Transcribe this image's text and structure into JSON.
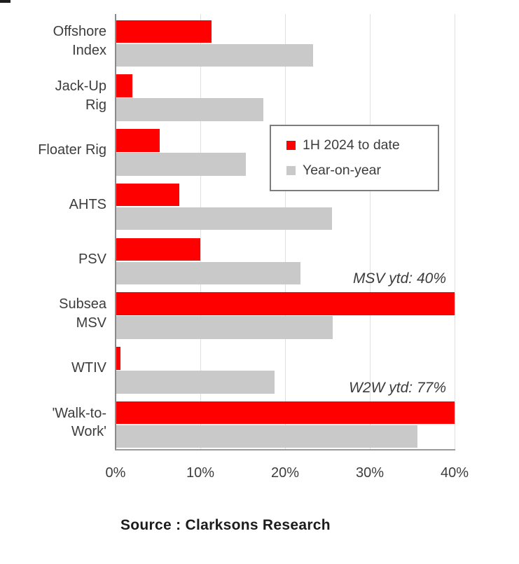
{
  "chart_data": {
    "type": "bar",
    "orientation": "horizontal",
    "title": "",
    "xlabel": "",
    "ylabel": "",
    "xlim": [
      0,
      40
    ],
    "clip_values_at": 40,
    "grid": true,
    "x_ticks": [
      0,
      10,
      20,
      30,
      40
    ],
    "x_tick_labels": [
      "0%",
      "10%",
      "20%",
      "30%",
      "40%"
    ],
    "categories": [
      "Offshore\nIndex",
      "Jack-Up\nRig",
      "Floater Rig",
      "AHTS",
      "PSV",
      "Subsea\nMSV",
      "WTIV",
      "'Walk-to-\nWork'"
    ],
    "series": [
      {
        "name": "1H 2024 to date",
        "color": "#fe0000",
        "values": [
          11.3,
          2.0,
          5.2,
          7.5,
          10.0,
          40.0,
          0.6,
          77.0
        ]
      },
      {
        "name": "Year-on-year",
        "color": "#c9c9c9",
        "values": [
          23.3,
          17.4,
          15.4,
          25.5,
          21.8,
          25.6,
          18.8,
          35.6
        ]
      }
    ],
    "legend_position": "upper-right-inside",
    "annotations": [
      {
        "text": "MSV ytd: 40%",
        "category_index": 5
      },
      {
        "text": "W2W ytd: 77%",
        "category_index": 7
      }
    ],
    "source_note": "Source : Clarksons Research"
  },
  "legend": {
    "items": [
      {
        "label": "1H 2024 to date",
        "color": "#fe0000"
      },
      {
        "label": "Year-on-year",
        "color": "#c9c9c9"
      }
    ]
  },
  "footer": {
    "source_label": "Source : Clarksons Research"
  },
  "colors": {
    "bar_red": "#fe0000",
    "bar_gray": "#c9c9c9",
    "gridline": "#e0e0e0",
    "axis": "#8a8a8a",
    "text": "#3d3d3d",
    "source_text": "#1c1c1c",
    "background": "#ffffff"
  }
}
